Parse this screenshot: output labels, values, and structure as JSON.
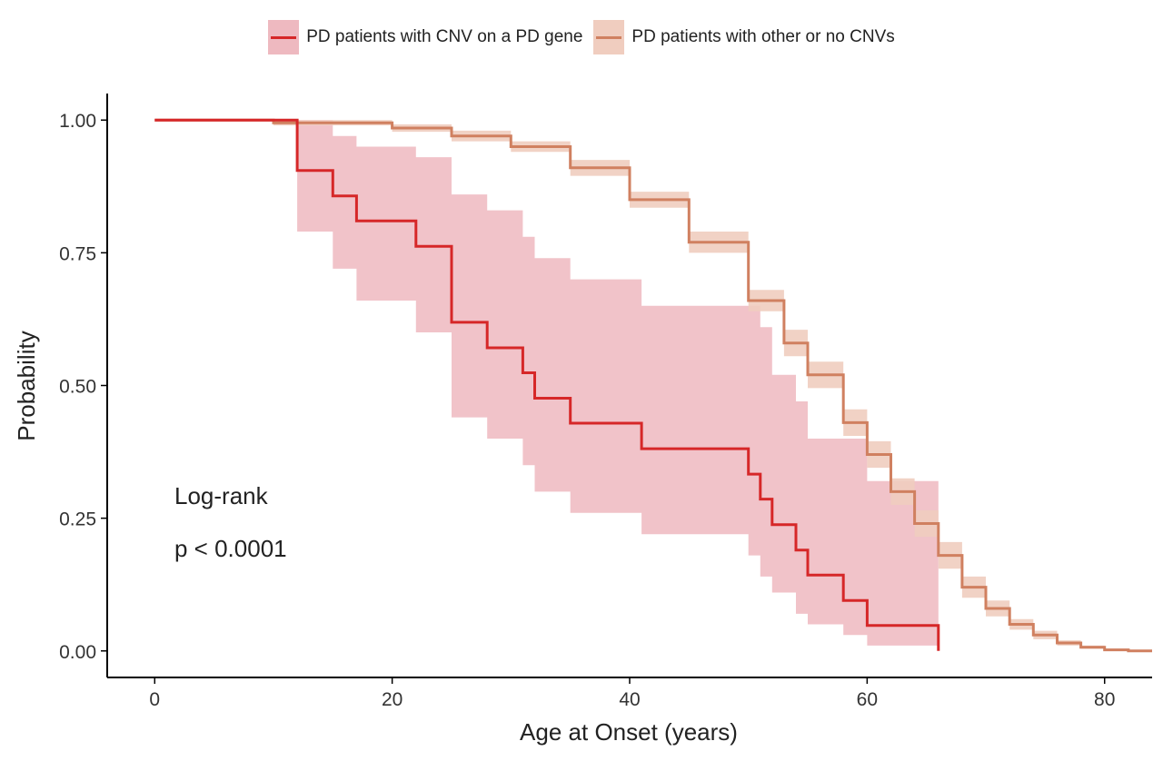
{
  "chart_data": {
    "type": "line",
    "step": true,
    "xlabel": "Age at Onset (years)",
    "ylabel": "Probability",
    "xlim": [
      -4,
      84
    ],
    "ylim": [
      -0.05,
      1.05
    ],
    "xticks": [
      0,
      20,
      40,
      60,
      80
    ],
    "yticks": [
      0.0,
      0.25,
      0.5,
      0.75,
      1.0
    ],
    "ytick_labels": [
      "0.00",
      "0.25",
      "0.50",
      "0.75",
      "1.00"
    ],
    "grid": false,
    "legend_position": "top",
    "annotations": [
      "Log-rank",
      "p < 0.0001"
    ],
    "series": [
      {
        "name": "PD patients with CNV on a PD gene",
        "color": "#d62728",
        "band_color": "#eeb9c0",
        "x": [
          0,
          12,
          15,
          17,
          22,
          25,
          28,
          31,
          32,
          35,
          41,
          50,
          51,
          52,
          54,
          55,
          58,
          60,
          66
        ],
        "y": [
          1.0,
          0.905,
          0.857,
          0.81,
          0.762,
          0.619,
          0.571,
          0.524,
          0.476,
          0.429,
          0.381,
          0.333,
          0.286,
          0.238,
          0.19,
          0.143,
          0.095,
          0.048,
          0.0
        ],
        "lower": [
          1.0,
          0.79,
          0.72,
          0.66,
          0.6,
          0.44,
          0.4,
          0.35,
          0.3,
          0.26,
          0.22,
          0.18,
          0.14,
          0.11,
          0.07,
          0.05,
          0.03,
          0.01,
          0.01
        ],
        "upper": [
          1.0,
          1.0,
          0.97,
          0.95,
          0.93,
          0.86,
          0.83,
          0.78,
          0.74,
          0.7,
          0.65,
          0.65,
          0.61,
          0.52,
          0.47,
          0.4,
          0.4,
          0.32,
          0.32
        ]
      },
      {
        "name": "PD patients with other or no CNVs",
        "color": "#d08060",
        "band_color": "#f0cdbf",
        "x": [
          0,
          10,
          20,
          25,
          30,
          35,
          40,
          45,
          50,
          53,
          55,
          58,
          60,
          62,
          64,
          66,
          68,
          70,
          72,
          74,
          76,
          78,
          80,
          82,
          84
        ],
        "y": [
          1.0,
          0.995,
          0.985,
          0.97,
          0.95,
          0.91,
          0.85,
          0.77,
          0.66,
          0.58,
          0.52,
          0.43,
          0.37,
          0.3,
          0.24,
          0.18,
          0.12,
          0.08,
          0.05,
          0.03,
          0.015,
          0.007,
          0.002,
          0.0,
          0.0
        ],
        "lower": [
          1.0,
          0.99,
          0.978,
          0.96,
          0.94,
          0.895,
          0.835,
          0.75,
          0.64,
          0.555,
          0.495,
          0.405,
          0.345,
          0.275,
          0.215,
          0.155,
          0.1,
          0.065,
          0.04,
          0.022,
          0.01,
          0.004,
          0.0,
          0.0,
          0.0
        ],
        "upper": [
          1.0,
          1.0,
          0.992,
          0.98,
          0.96,
          0.925,
          0.865,
          0.79,
          0.68,
          0.605,
          0.545,
          0.455,
          0.395,
          0.325,
          0.265,
          0.205,
          0.14,
          0.095,
          0.06,
          0.038,
          0.02,
          0.01,
          0.004,
          0.0,
          0.0
        ]
      }
    ]
  }
}
